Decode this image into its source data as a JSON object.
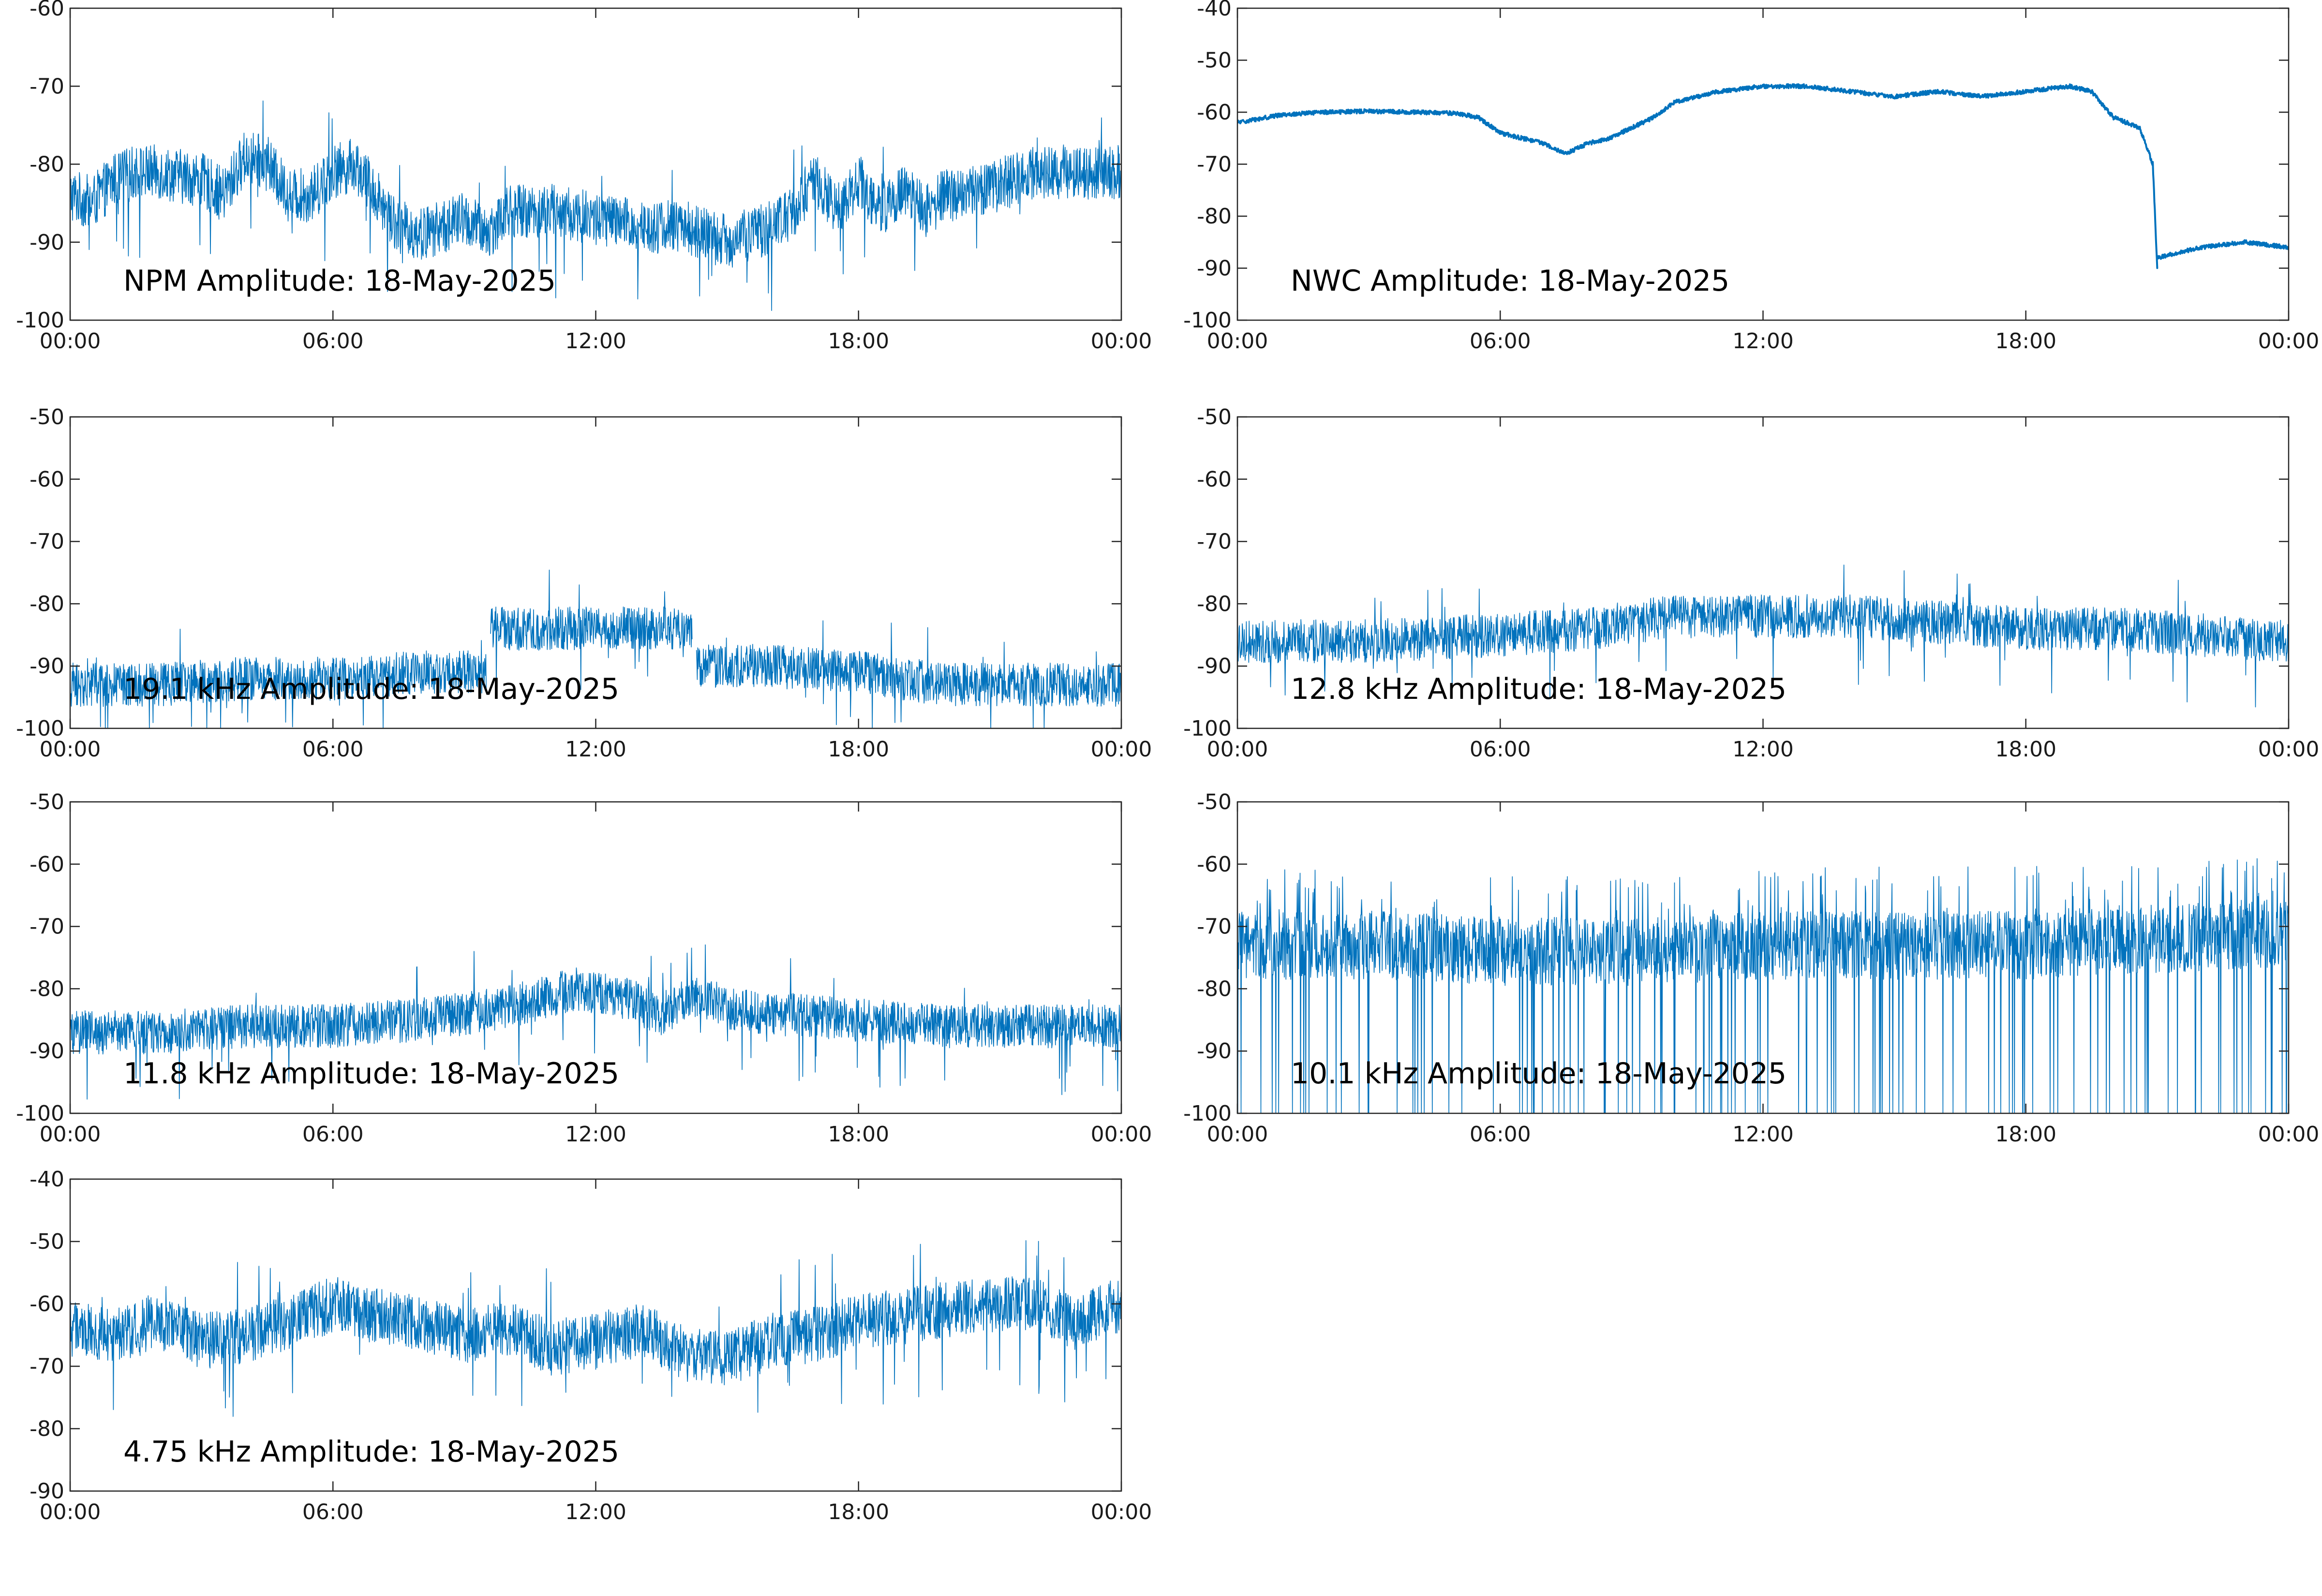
{
  "figure": {
    "background": "#ffffff",
    "series_color": "#0072BD"
  },
  "chart_data": [
    {
      "type": "line",
      "title": "NPM Amplitude: 18-May-2025",
      "x_ticks": [
        "00:00",
        "06:00",
        "12:00",
        "18:00",
        "00:00"
      ],
      "xlim": [
        "00:00",
        "24:00"
      ],
      "ylim": [
        -100,
        -60
      ],
      "y_ticks": [
        -60,
        -70,
        -80,
        -90,
        -100
      ],
      "grid": false,
      "noise": {
        "amplitude": 3.5,
        "spikes": "up-and-down"
      },
      "series": [
        {
          "hour": [
            0,
            0.5,
            1,
            1.5,
            2,
            3,
            3.5,
            4,
            4.5,
            5,
            5.5,
            6,
            6.5,
            7,
            7.5,
            8,
            8.5,
            9,
            9.5,
            10,
            11,
            12,
            13,
            14,
            14.5,
            15,
            15.5,
            16,
            16.5,
            17,
            17.5,
            18,
            18.5,
            19,
            19.5,
            20,
            21,
            22,
            23,
            24
          ],
          "dB": [
            -84,
            -85,
            -82,
            -81,
            -81,
            -82,
            -84,
            -79,
            -80,
            -84,
            -84,
            -81,
            -80,
            -84,
            -88,
            -89,
            -88,
            -87,
            -89,
            -86,
            -86,
            -87,
            -88,
            -88,
            -89,
            -90,
            -89,
            -88,
            -86,
            -82,
            -86,
            -82,
            -86,
            -83,
            -86,
            -84,
            -83,
            -81,
            -81,
            -81
          ]
        }
      ]
    },
    {
      "type": "line",
      "title": "NWC Amplitude: 18-May-2025",
      "x_ticks": [
        "00:00",
        "06:00",
        "12:00",
        "18:00",
        "00:00"
      ],
      "xlim": [
        "00:00",
        "24:00"
      ],
      "ylim": [
        -100,
        -40
      ],
      "y_ticks": [
        -40,
        -50,
        -60,
        -70,
        -80,
        -90,
        -100
      ],
      "grid": false,
      "noise": {
        "amplitude": 0.4,
        "spikes": "none"
      },
      "series": [
        {
          "hour": [
            0,
            1,
            2,
            3,
            4,
            5,
            5.5,
            6,
            6.5,
            7,
            7.5,
            8,
            8.5,
            9,
            9.5,
            10,
            11,
            12,
            13,
            14,
            15,
            16,
            17,
            18,
            19,
            19.5,
            20,
            20.3,
            20.6,
            20.9,
            21.0
          ],
          "dB": [
            -62,
            -60.5,
            -60,
            -59.8,
            -60,
            -60.2,
            -61,
            -64,
            -65,
            -66,
            -68,
            -66,
            -65,
            -63,
            -61,
            -58,
            -56,
            -55,
            -55,
            -56,
            -57,
            -56,
            -57,
            -56,
            -55,
            -56,
            -61,
            -62,
            -63,
            -70,
            -90
          ]
        },
        {
          "hour": [
            21.0,
            22,
            23,
            24
          ],
          "dB": [
            -88,
            -86,
            -85,
            -86
          ]
        }
      ]
    },
    {
      "type": "line",
      "title": "19.1 kHz Amplitude: 18-May-2025",
      "x_ticks": [
        "00:00",
        "06:00",
        "12:00",
        "18:00",
        "00:00"
      ],
      "xlim": [
        "00:00",
        "24:00"
      ],
      "ylim": [
        -100,
        -50
      ],
      "y_ticks": [
        -50,
        -60,
        -70,
        -80,
        -90,
        -100
      ],
      "grid": false,
      "noise": {
        "amplitude": 3.5,
        "spikes": "up-and-down"
      },
      "series": [
        {
          "hour": [
            0,
            2,
            4,
            6,
            8,
            9.5
          ],
          "dB": [
            -93,
            -93,
            -92,
            -92,
            -91,
            -91
          ]
        },
        {
          "hour": [
            9.6,
            11,
            12,
            13,
            14.2
          ],
          "dB": [
            -84,
            -84,
            -84,
            -84,
            -84
          ]
        },
        {
          "hour": [
            14.3,
            16,
            18,
            20,
            22,
            24
          ],
          "dB": [
            -90,
            -90,
            -91,
            -93,
            -93,
            -93
          ]
        }
      ]
    },
    {
      "type": "line",
      "title": "12.8 kHz Amplitude: 18-May-2025",
      "x_ticks": [
        "00:00",
        "06:00",
        "12:00",
        "18:00",
        "00:00"
      ],
      "xlim": [
        "00:00",
        "24:00"
      ],
      "ylim": [
        -100,
        -50
      ],
      "y_ticks": [
        -50,
        -60,
        -70,
        -80,
        -90,
        -100
      ],
      "grid": false,
      "noise": {
        "amplitude": 3.5,
        "spikes": "up-and-down"
      },
      "series": [
        {
          "hour": [
            0,
            3,
            6,
            8,
            10,
            12,
            14,
            16,
            18,
            20,
            22,
            24
          ],
          "dB": [
            -86,
            -86,
            -85,
            -84,
            -82,
            -82,
            -82,
            -83,
            -84,
            -84,
            -85,
            -86
          ]
        }
      ]
    },
    {
      "type": "line",
      "title": "11.8 kHz Amplitude: 18-May-2025",
      "x_ticks": [
        "00:00",
        "06:00",
        "12:00",
        "18:00",
        "00:00"
      ],
      "xlim": [
        "00:00",
        "24:00"
      ],
      "ylim": [
        -100,
        -50
      ],
      "y_ticks": [
        -50,
        -60,
        -70,
        -80,
        -90,
        -100
      ],
      "grid": false,
      "noise": {
        "amplitude": 3.5,
        "spikes": "up-and-down"
      },
      "series": [
        {
          "hour": [
            0,
            2,
            4,
            6,
            8,
            10,
            11.5,
            12.5,
            13.5,
            14.2,
            15,
            16,
            18,
            20,
            22,
            24
          ],
          "dB": [
            -87,
            -87,
            -86,
            -86,
            -85,
            -83,
            -80,
            -81,
            -84,
            -81,
            -83,
            -84,
            -85,
            -86,
            -86,
            -86
          ]
        }
      ]
    },
    {
      "type": "line",
      "title": "10.1 kHz Amplitude: 18-May-2025",
      "x_ticks": [
        "00:00",
        "06:00",
        "12:00",
        "18:00",
        "00:00"
      ],
      "xlim": [
        "00:00",
        "24:00"
      ],
      "ylim": [
        -100,
        -50
      ],
      "y_ticks": [
        -50,
        -60,
        -70,
        -80,
        -90,
        -100
      ],
      "grid": false,
      "noise": {
        "amplitude": 5.5,
        "spikes": "deep-dropouts"
      },
      "series": [
        {
          "hour": [
            0,
            3,
            6,
            9,
            12,
            15,
            18,
            21,
            24
          ],
          "dB": [
            -73,
            -73,
            -74,
            -74,
            -73,
            -73,
            -73,
            -72,
            -71
          ]
        }
      ]
    },
    {
      "type": "line",
      "title": "4.75 kHz Amplitude: 18-May-2025",
      "x_ticks": [
        "00:00",
        "06:00",
        "12:00",
        "18:00",
        "00:00"
      ],
      "xlim": [
        "00:00",
        "24:00"
      ],
      "ylim": [
        -90,
        -40
      ],
      "y_ticks": [
        -40,
        -50,
        -60,
        -70,
        -80,
        -90
      ],
      "grid": false,
      "noise": {
        "amplitude": 4.5,
        "spikes": "up-and-down"
      },
      "series": [
        {
          "hour": [
            0,
            1,
            2,
            3,
            4,
            5,
            6,
            7,
            8,
            9,
            10,
            11,
            12,
            13,
            14,
            15,
            16,
            17,
            18,
            19,
            20,
            21,
            22,
            23,
            24
          ],
          "dB": [
            -64,
            -65,
            -63,
            -66,
            -65,
            -63,
            -60,
            -62,
            -63,
            -65,
            -64,
            -67,
            -66,
            -64,
            -68,
            -69,
            -66,
            -65,
            -63,
            -62,
            -61,
            -60,
            -60,
            -63,
            -60
          ]
        }
      ]
    }
  ]
}
